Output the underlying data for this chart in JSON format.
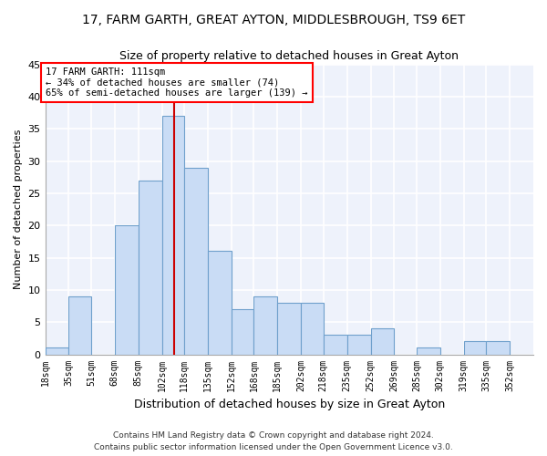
{
  "title_line1": "17, FARM GARTH, GREAT AYTON, MIDDLESBROUGH, TS9 6ET",
  "title_line2": "Size of property relative to detached houses in Great Ayton",
  "xlabel": "Distribution of detached houses by size in Great Ayton",
  "ylabel": "Number of detached properties",
  "footer": "Contains HM Land Registry data © Crown copyright and database right 2024.\nContains public sector information licensed under the Open Government Licence v3.0.",
  "bins": [
    18,
    35,
    51,
    68,
    85,
    102,
    118,
    135,
    152,
    168,
    185,
    202,
    218,
    235,
    252,
    269,
    285,
    302,
    319,
    335,
    352,
    369
  ],
  "counts": [
    1,
    9,
    0,
    20,
    27,
    37,
    29,
    16,
    7,
    9,
    8,
    8,
    3,
    3,
    4,
    0,
    1,
    0,
    2,
    2,
    0
  ],
  "bar_color": "#c9dcf5",
  "bar_edge_color": "#6fa0cc",
  "property_size": 111,
  "annotation_line1": "17 FARM GARTH: 111sqm",
  "annotation_line2": "← 34% of detached houses are smaller (74)",
  "annotation_line3": "65% of semi-detached houses are larger (139) →",
  "vline_color": "#cc0000",
  "ylim": [
    0,
    45
  ],
  "yticks": [
    0,
    5,
    10,
    15,
    20,
    25,
    30,
    35,
    40,
    45
  ],
  "bg_color": "#ffffff",
  "plot_bg_color": "#eef2fb",
  "xtick_labels": [
    "18sqm",
    "35sqm",
    "51sqm",
    "68sqm",
    "85sqm",
    "102sqm",
    "118sqm",
    "135sqm",
    "152sqm",
    "168sqm",
    "185sqm",
    "202sqm",
    "218sqm",
    "235sqm",
    "252sqm",
    "269sqm",
    "285sqm",
    "302sqm",
    "319sqm",
    "335sqm",
    "352sqm"
  ]
}
